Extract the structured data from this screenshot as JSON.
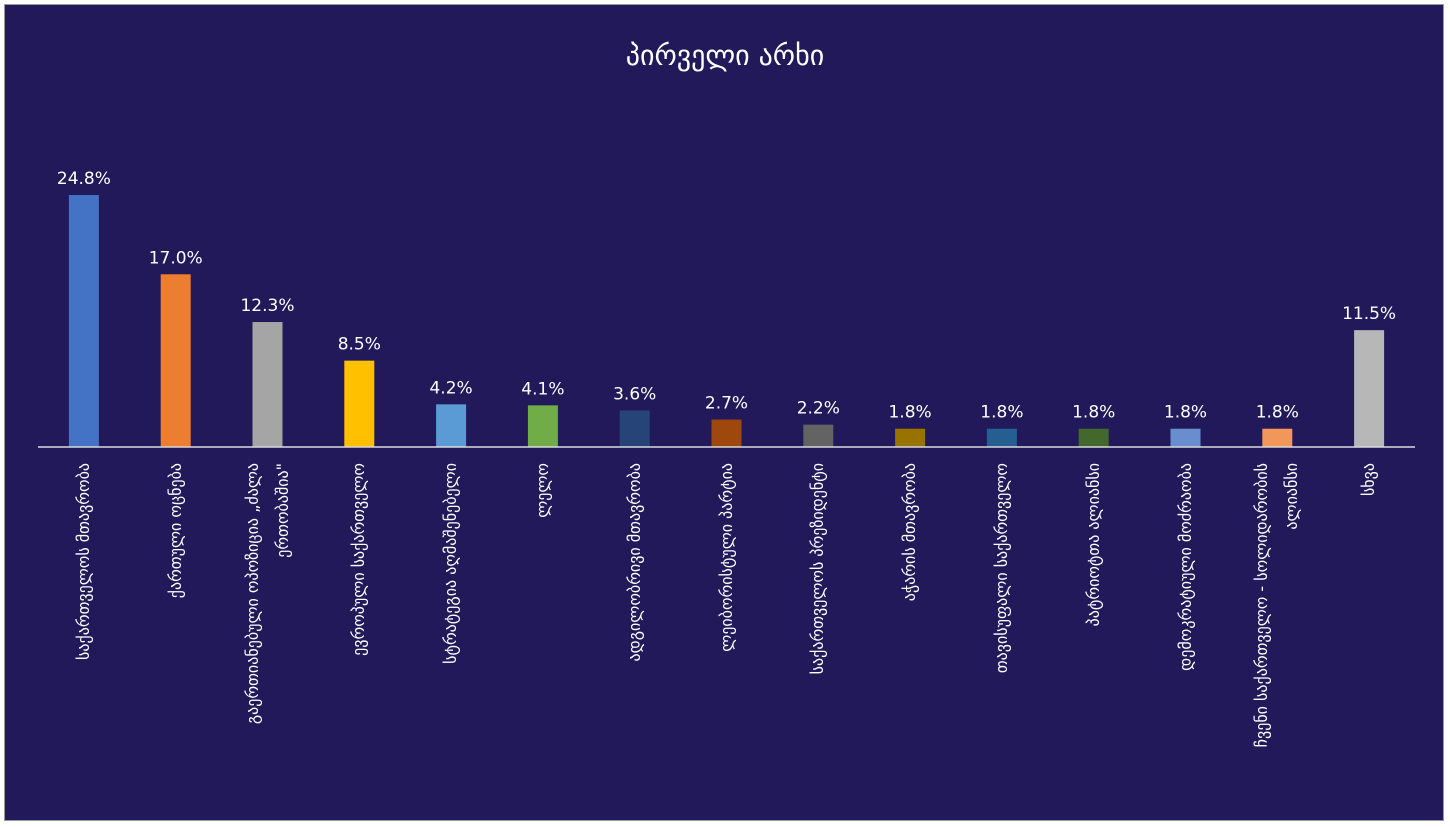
{
  "chart_data": {
    "type": "bar",
    "title": "პირველი არხი",
    "categories": [
      "საქართველოს მთავრობა",
      "ქართული ოცნება",
      "გაერთიანებული ოპოზიცია „ძალა ერთობაშია\"",
      "ევროპული საქართველო",
      "სტრატეგია აღმაშენებელი",
      "ლელო",
      "ადგილობრივი მთავრობა",
      "ლეიბორისტული პარტია",
      "საქართველოს პრეზიდენტი",
      "აჭარის მთავრობა",
      "თავისუფალი საქართველო",
      "პატრიოტთა ალიანსი",
      "დემოკრატიული მოძრაობა",
      "ჩვენი საქართველო - სოლიდარობის ალიანსი",
      "სხვა"
    ],
    "values": [
      24.8,
      17.0,
      12.3,
      8.5,
      4.2,
      4.1,
      3.6,
      2.7,
      2.2,
      1.8,
      1.8,
      1.8,
      1.8,
      1.8,
      11.5
    ],
    "value_labels": [
      "24.8%",
      "17.0%",
      "12.3%",
      "8.5%",
      "4.2%",
      "4.1%",
      "3.6%",
      "2.7%",
      "2.2%",
      "1.8%",
      "1.8%",
      "1.8%",
      "1.8%",
      "1.8%",
      "11.5%"
    ],
    "colors": [
      "#4472c4",
      "#ed7d31",
      "#a5a5a5",
      "#ffc000",
      "#5b9bd5",
      "#70ad47",
      "#264478",
      "#9e480e",
      "#636363",
      "#997300",
      "#255e91",
      "#43682b",
      "#698ed0",
      "#f1975a",
      "#b7b7b7"
    ],
    "ylim": [
      0,
      25
    ]
  }
}
